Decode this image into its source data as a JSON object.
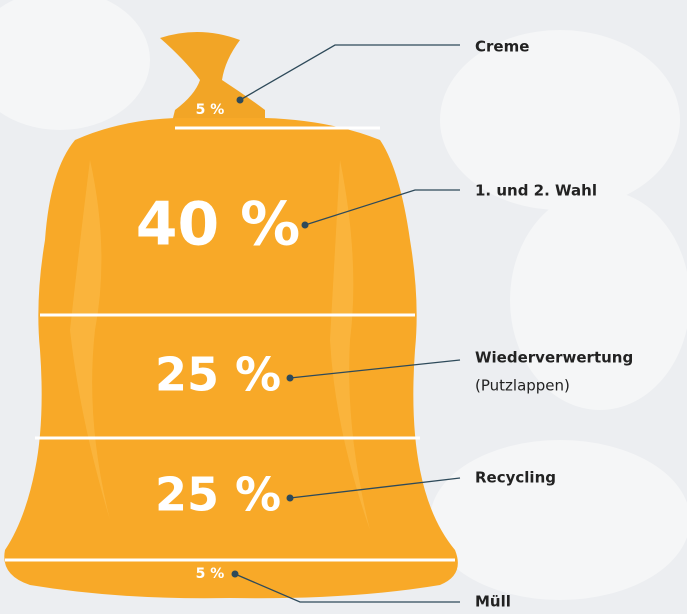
{
  "segments": [
    {
      "percent": "5 %",
      "label": "Creme"
    },
    {
      "percent": "40 %",
      "label": "1. und 2. Wahl"
    },
    {
      "percent": "25 %",
      "label": "Wiederverwertung",
      "sublabel": "(Putzlappen)"
    },
    {
      "percent": "25 %",
      "label": "Recycling"
    },
    {
      "percent": "5 %",
      "label": "Müll"
    }
  ]
}
